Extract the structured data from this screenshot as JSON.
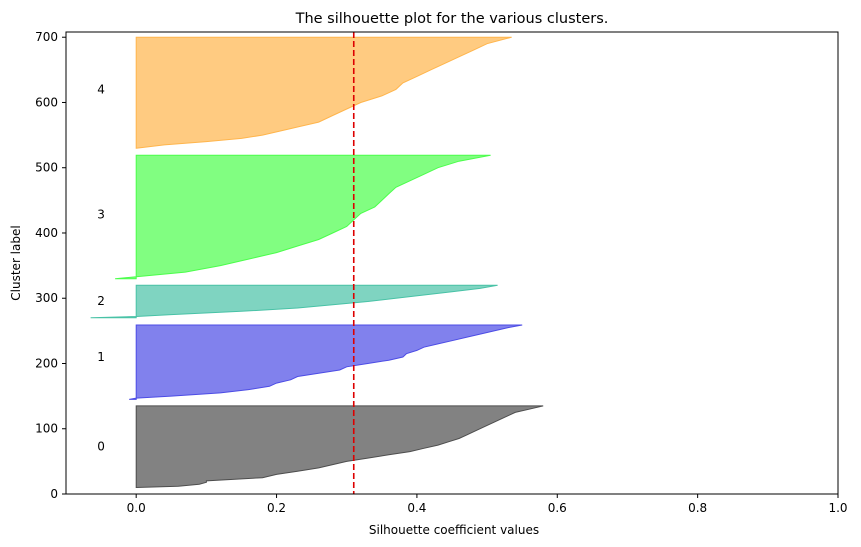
{
  "chart_data": {
    "type": "area",
    "title": "The silhouette plot for the various clusters.",
    "xlabel": "Silhouette coefficient values",
    "ylabel": "Cluster label",
    "xlim": [
      -0.1,
      1.0
    ],
    "ylim": [
      0,
      708
    ],
    "xticks": [
      0.0,
      0.2,
      0.4,
      0.6,
      0.8,
      1.0
    ],
    "xtick_labels": [
      "0.0",
      "0.2",
      "0.4",
      "0.6",
      "0.8",
      "1.0"
    ],
    "yticks": [
      0,
      100,
      200,
      300,
      400,
      500,
      600,
      700
    ],
    "ytick_labels": [
      "0",
      "100",
      "200",
      "300",
      "400",
      "500",
      "600",
      "700"
    ],
    "grid": false,
    "average_line": {
      "x": 0.31,
      "color": "#dd0000",
      "style": "dashed"
    },
    "clusters": [
      {
        "label": "0",
        "label_y": 73,
        "color": "#4d4d4d",
        "y_lower": 10,
        "y_upper": 135,
        "profile": [
          [
            10,
            0.0
          ],
          [
            12,
            0.06
          ],
          [
            15,
            0.09
          ],
          [
            18,
            0.1
          ],
          [
            20,
            0.1
          ],
          [
            25,
            0.18
          ],
          [
            30,
            0.2
          ],
          [
            35,
            0.23
          ],
          [
            40,
            0.26
          ],
          [
            45,
            0.28
          ],
          [
            50,
            0.3
          ],
          [
            55,
            0.33
          ],
          [
            60,
            0.36
          ],
          [
            65,
            0.39
          ],
          [
            70,
            0.41
          ],
          [
            75,
            0.43
          ],
          [
            80,
            0.445
          ],
          [
            85,
            0.46
          ],
          [
            90,
            0.47
          ],
          [
            100,
            0.49
          ],
          [
            110,
            0.51
          ],
          [
            120,
            0.53
          ],
          [
            125,
            0.54
          ],
          [
            130,
            0.56
          ],
          [
            135,
            0.58
          ]
        ]
      },
      {
        "label": "1",
        "label_y": 210,
        "color": "#4c4ce5",
        "y_lower": 145,
        "y_upper": 259,
        "profile": [
          [
            145,
            -0.01
          ],
          [
            147,
            0.0
          ],
          [
            150,
            0.05
          ],
          [
            155,
            0.12
          ],
          [
            160,
            0.16
          ],
          [
            165,
            0.19
          ],
          [
            170,
            0.2
          ],
          [
            175,
            0.22
          ],
          [
            180,
            0.23
          ],
          [
            185,
            0.26
          ],
          [
            190,
            0.29
          ],
          [
            195,
            0.3
          ],
          [
            200,
            0.33
          ],
          [
            205,
            0.36
          ],
          [
            210,
            0.38
          ],
          [
            215,
            0.385
          ],
          [
            220,
            0.4
          ],
          [
            225,
            0.41
          ],
          [
            230,
            0.43
          ],
          [
            235,
            0.45
          ],
          [
            240,
            0.47
          ],
          [
            245,
            0.49
          ],
          [
            250,
            0.51
          ],
          [
            255,
            0.53
          ],
          [
            259,
            0.55
          ]
        ]
      },
      {
        "label": "2",
        "label_y": 296,
        "color": "#48c2a6",
        "y_lower": 270,
        "y_upper": 320,
        "profile": [
          [
            270,
            -0.065
          ],
          [
            272,
            0.0
          ],
          [
            275,
            0.05
          ],
          [
            280,
            0.15
          ],
          [
            285,
            0.23
          ],
          [
            290,
            0.28
          ],
          [
            295,
            0.33
          ],
          [
            300,
            0.37
          ],
          [
            305,
            0.41
          ],
          [
            310,
            0.45
          ],
          [
            315,
            0.49
          ],
          [
            320,
            0.515
          ]
        ]
      },
      {
        "label": "3",
        "label_y": 428,
        "color": "#4bfe4b",
        "y_lower": 330,
        "y_upper": 519,
        "profile": [
          [
            330,
            -0.03
          ],
          [
            333,
            0.0
          ],
          [
            340,
            0.07
          ],
          [
            350,
            0.12
          ],
          [
            360,
            0.16
          ],
          [
            370,
            0.2
          ],
          [
            380,
            0.23
          ],
          [
            390,
            0.26
          ],
          [
            400,
            0.28
          ],
          [
            410,
            0.3
          ],
          [
            420,
            0.31
          ],
          [
            430,
            0.32
          ],
          [
            440,
            0.34
          ],
          [
            450,
            0.35
          ],
          [
            460,
            0.36
          ],
          [
            470,
            0.37
          ],
          [
            480,
            0.39
          ],
          [
            490,
            0.41
          ],
          [
            500,
            0.43
          ],
          [
            510,
            0.46
          ],
          [
            519,
            0.505
          ]
        ]
      },
      {
        "label": "4",
        "label_y": 620,
        "color": "#ffb54c",
        "y_lower": 530,
        "y_upper": 700,
        "profile": [
          [
            530,
            0.0
          ],
          [
            535,
            0.04
          ],
          [
            540,
            0.1
          ],
          [
            545,
            0.15
          ],
          [
            550,
            0.18
          ],
          [
            560,
            0.22
          ],
          [
            570,
            0.26
          ],
          [
            580,
            0.28
          ],
          [
            590,
            0.3
          ],
          [
            600,
            0.32
          ],
          [
            610,
            0.35
          ],
          [
            620,
            0.37
          ],
          [
            630,
            0.38
          ],
          [
            640,
            0.4
          ],
          [
            650,
            0.42
          ],
          [
            660,
            0.44
          ],
          [
            670,
            0.46
          ],
          [
            680,
            0.48
          ],
          [
            690,
            0.5
          ],
          [
            700,
            0.535
          ]
        ]
      }
    ]
  }
}
